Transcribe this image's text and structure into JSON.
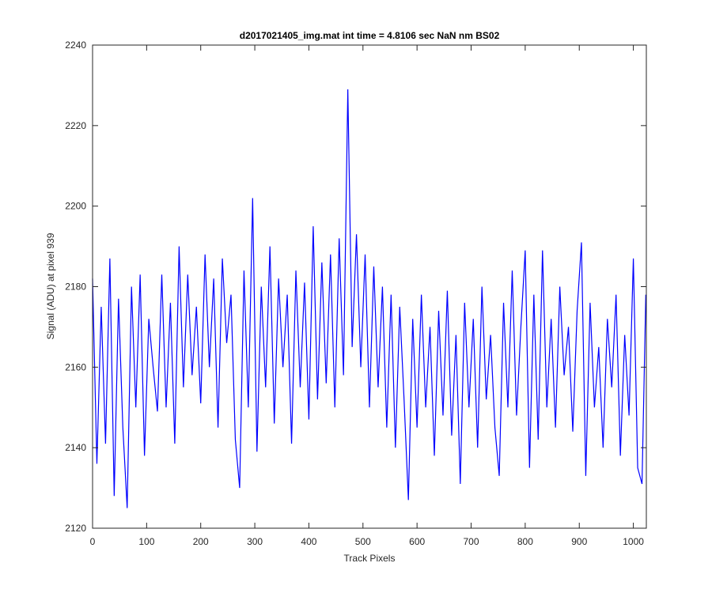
{
  "chart_data": {
    "type": "line",
    "title": "d2017021405_img.mat int time = 4.8106 sec  NaN nm BS02",
    "xlabel": "Track Pixels",
    "ylabel": "Signal (ADU) at pixel 939",
    "x": [
      0,
      8,
      16,
      24,
      32,
      40,
      48,
      56,
      64,
      72,
      80,
      88,
      96,
      104,
      112,
      120,
      128,
      136,
      144,
      152,
      160,
      168,
      176,
      184,
      192,
      200,
      208,
      216,
      224,
      232,
      240,
      248,
      256,
      264,
      272,
      280,
      288,
      296,
      304,
      312,
      320,
      328,
      336,
      344,
      352,
      360,
      368,
      376,
      384,
      392,
      400,
      408,
      416,
      424,
      432,
      440,
      448,
      456,
      464,
      472,
      480,
      488,
      496,
      504,
      512,
      520,
      528,
      536,
      544,
      552,
      560,
      568,
      576,
      584,
      592,
      600,
      608,
      616,
      624,
      632,
      640,
      648,
      656,
      664,
      672,
      680,
      688,
      696,
      704,
      712,
      720,
      728,
      736,
      744,
      752,
      760,
      768,
      776,
      784,
      792,
      800,
      808,
      816,
      824,
      832,
      840,
      848,
      856,
      864,
      872,
      880,
      888,
      896,
      904,
      912,
      920,
      928,
      936,
      944,
      952,
      960,
      968,
      976,
      984,
      992,
      1000,
      1008,
      1016,
      1023
    ],
    "series": [
      {
        "name": "signal",
        "color": "#0000ff",
        "values": [
          2182,
          2136,
          2175,
          2141,
          2187,
          2128,
          2177,
          2145,
          2125,
          2180,
          2150,
          2183,
          2138,
          2172,
          2160,
          2149,
          2183,
          2150,
          2176,
          2141,
          2190,
          2155,
          2183,
          2158,
          2175,
          2151,
          2188,
          2160,
          2182,
          2145,
          2187,
          2166,
          2178,
          2142,
          2130,
          2184,
          2150,
          2202,
          2139,
          2180,
          2155,
          2190,
          2146,
          2182,
          2160,
          2178,
          2141,
          2184,
          2155,
          2181,
          2147,
          2195,
          2152,
          2186,
          2156,
          2188,
          2150,
          2192,
          2158,
          2229,
          2165,
          2193,
          2160,
          2188,
          2150,
          2185,
          2155,
          2180,
          2145,
          2178,
          2140,
          2175,
          2152,
          2127,
          2172,
          2145,
          2178,
          2150,
          2170,
          2138,
          2174,
          2148,
          2179,
          2143,
          2168,
          2131,
          2176,
          2150,
          2172,
          2140,
          2180,
          2152,
          2168,
          2145,
          2133,
          2176,
          2150,
          2184,
          2148,
          2170,
          2189,
          2135,
          2178,
          2142,
          2189,
          2150,
          2172,
          2145,
          2180,
          2158,
          2170,
          2144,
          2174,
          2191,
          2133,
          2176,
          2150,
          2165,
          2140,
          2172,
          2155,
          2178,
          2138,
          2168,
          2148,
          2187,
          2135,
          2131,
          2178
        ]
      }
    ],
    "xlim": [
      0,
      1024
    ],
    "ylim": [
      2120,
      2240
    ],
    "xticks": [
      0,
      100,
      200,
      300,
      400,
      500,
      600,
      700,
      800,
      900,
      1000
    ],
    "yticks": [
      2120,
      2140,
      2160,
      2180,
      2200,
      2220,
      2240
    ]
  }
}
